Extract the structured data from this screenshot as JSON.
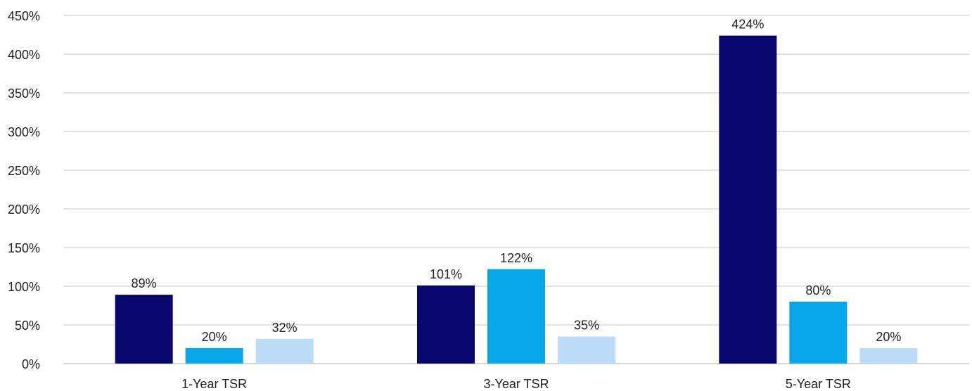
{
  "chart_data": {
    "type": "bar",
    "title": "",
    "xlabel": "",
    "ylabel": "",
    "categories": [
      "1-Year TSR",
      "3-Year TSR",
      "5-Year TSR"
    ],
    "series": [
      {
        "values": [
          89,
          101,
          424
        ],
        "labels": [
          "89%",
          "101%",
          "424%"
        ],
        "color": "#07076e"
      },
      {
        "values": [
          20,
          122,
          80
        ],
        "labels": [
          "20%",
          "122%",
          "80%"
        ],
        "color": "#06a6e8"
      },
      {
        "values": [
          32,
          35,
          20
        ],
        "labels": [
          "32%",
          "35%",
          "20%"
        ],
        "color": "#bcdcf8"
      }
    ],
    "ylim": [
      0,
      450
    ],
    "yticks": [
      0,
      50,
      100,
      150,
      200,
      250,
      300,
      350,
      400,
      450
    ],
    "ytick_labels": [
      "0%",
      "50%",
      "100%",
      "150%",
      "200%",
      "250%",
      "300%",
      "350%",
      "400%",
      "450%"
    ],
    "grid": true,
    "legend": "none"
  }
}
